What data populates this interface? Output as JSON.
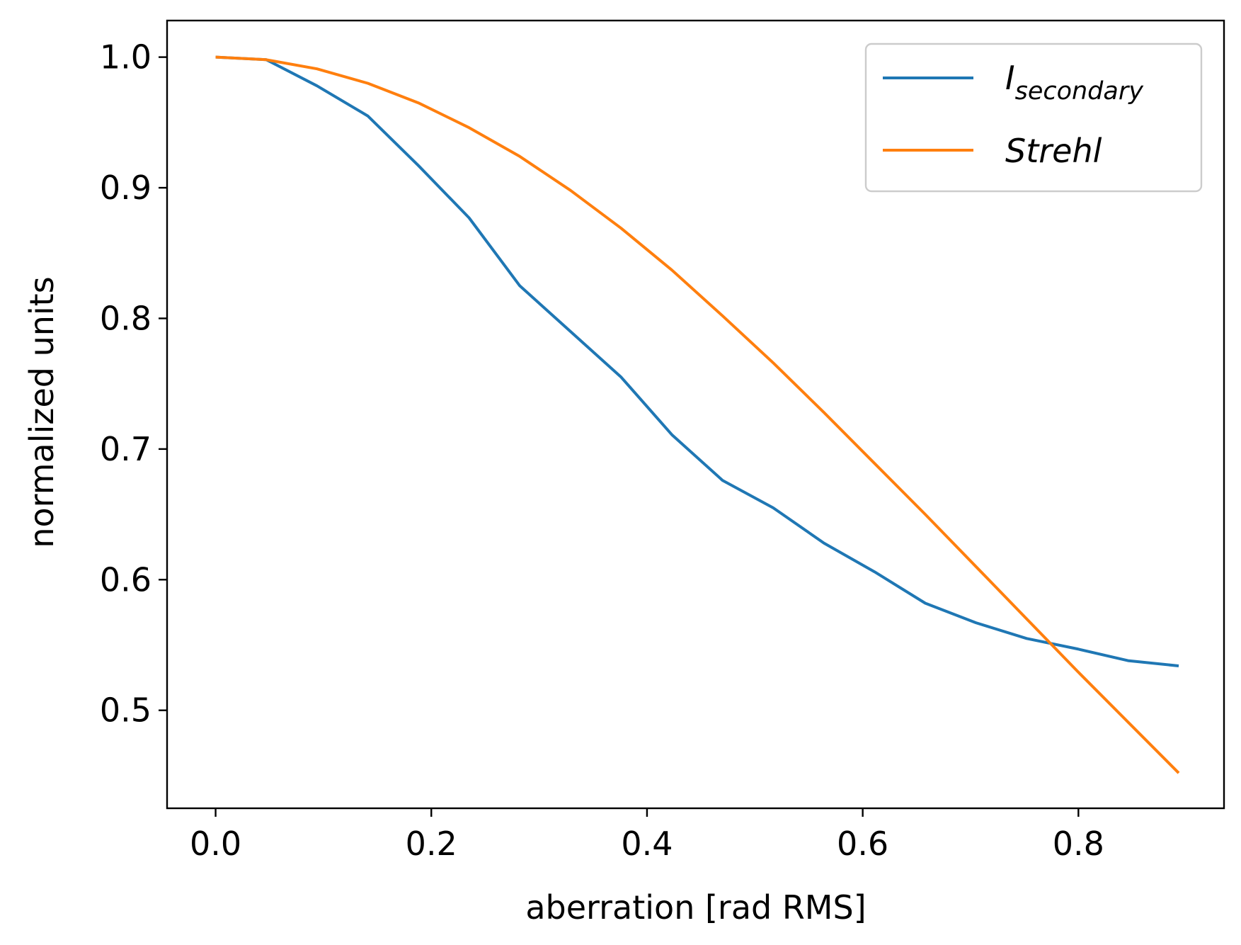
{
  "chart_data": {
    "type": "line",
    "title": "",
    "xlabel": "aberration [rad RMS]",
    "ylabel": "normalized units",
    "xlim": [
      -0.045,
      0.935
    ],
    "ylim": [
      0.425,
      1.028
    ],
    "xticks": [
      0.0,
      0.2,
      0.4,
      0.6,
      0.8
    ],
    "xtick_labels": [
      "0.0",
      "0.2",
      "0.4",
      "0.6",
      "0.8"
    ],
    "yticks": [
      0.5,
      0.6,
      0.7,
      0.8,
      0.9,
      1.0
    ],
    "ytick_labels": [
      "0.5",
      "0.6",
      "0.7",
      "0.8",
      "0.9",
      "1.0"
    ],
    "grid": false,
    "legend_position": "top-right",
    "x": [
      0.0,
      0.047,
      0.094,
      0.141,
      0.188,
      0.235,
      0.282,
      0.329,
      0.376,
      0.423,
      0.47,
      0.517,
      0.564,
      0.611,
      0.658,
      0.705,
      0.752,
      0.799,
      0.846,
      0.893
    ],
    "series": [
      {
        "name": "I_secondary",
        "legend_main": "I",
        "legend_sub": "secondary",
        "color": "#1f77b4",
        "values": [
          1.0,
          0.998,
          0.978,
          0.955,
          0.917,
          0.877,
          0.825,
          0.79,
          0.755,
          0.711,
          0.676,
          0.655,
          0.628,
          0.606,
          0.582,
          0.567,
          0.555,
          0.547,
          0.538,
          0.534
        ]
      },
      {
        "name": "Strehl",
        "legend_main": "Strehl",
        "legend_sub": "",
        "color": "#ff7f0e",
        "values": [
          1.0,
          0.998,
          0.991,
          0.98,
          0.965,
          0.946,
          0.924,
          0.898,
          0.869,
          0.837,
          0.802,
          0.766,
          0.728,
          0.689,
          0.65,
          0.61,
          0.57,
          0.53,
          0.491,
          0.452
        ]
      }
    ]
  }
}
